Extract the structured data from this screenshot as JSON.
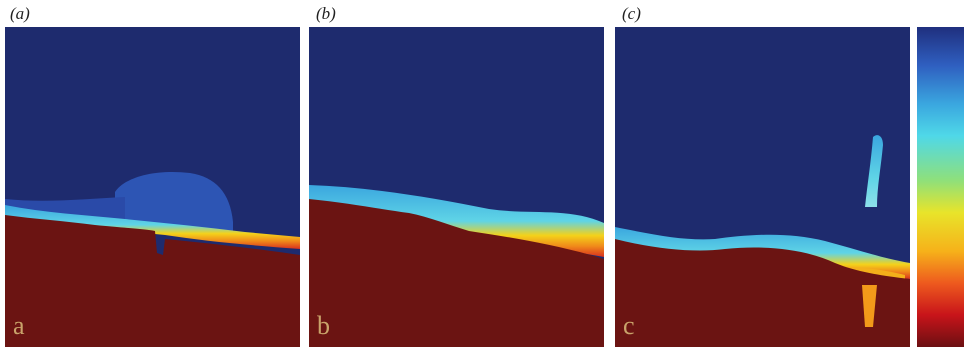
{
  "panels": [
    {
      "caption": "(a)",
      "inner_label": "a"
    },
    {
      "caption": "(b)",
      "inner_label": "b"
    },
    {
      "caption": "(c)",
      "inner_label": "c"
    }
  ],
  "colors": {
    "background_fluid": "#1e2b6e",
    "rock": "#6b1412",
    "interface_light": "#3aa6df",
    "interface_yellow": "#f4d21a",
    "interface_orange": "#f08a1a",
    "interface_red": "#d8301e"
  },
  "colorbar": {
    "stops": [
      "#1f2f7e",
      "#2f5fc0",
      "#3aa6df",
      "#4fd8e8",
      "#8fe07a",
      "#e8e42a",
      "#f6b21a",
      "#ee5a1e",
      "#c8141a",
      "#6b0f12"
    ]
  }
}
